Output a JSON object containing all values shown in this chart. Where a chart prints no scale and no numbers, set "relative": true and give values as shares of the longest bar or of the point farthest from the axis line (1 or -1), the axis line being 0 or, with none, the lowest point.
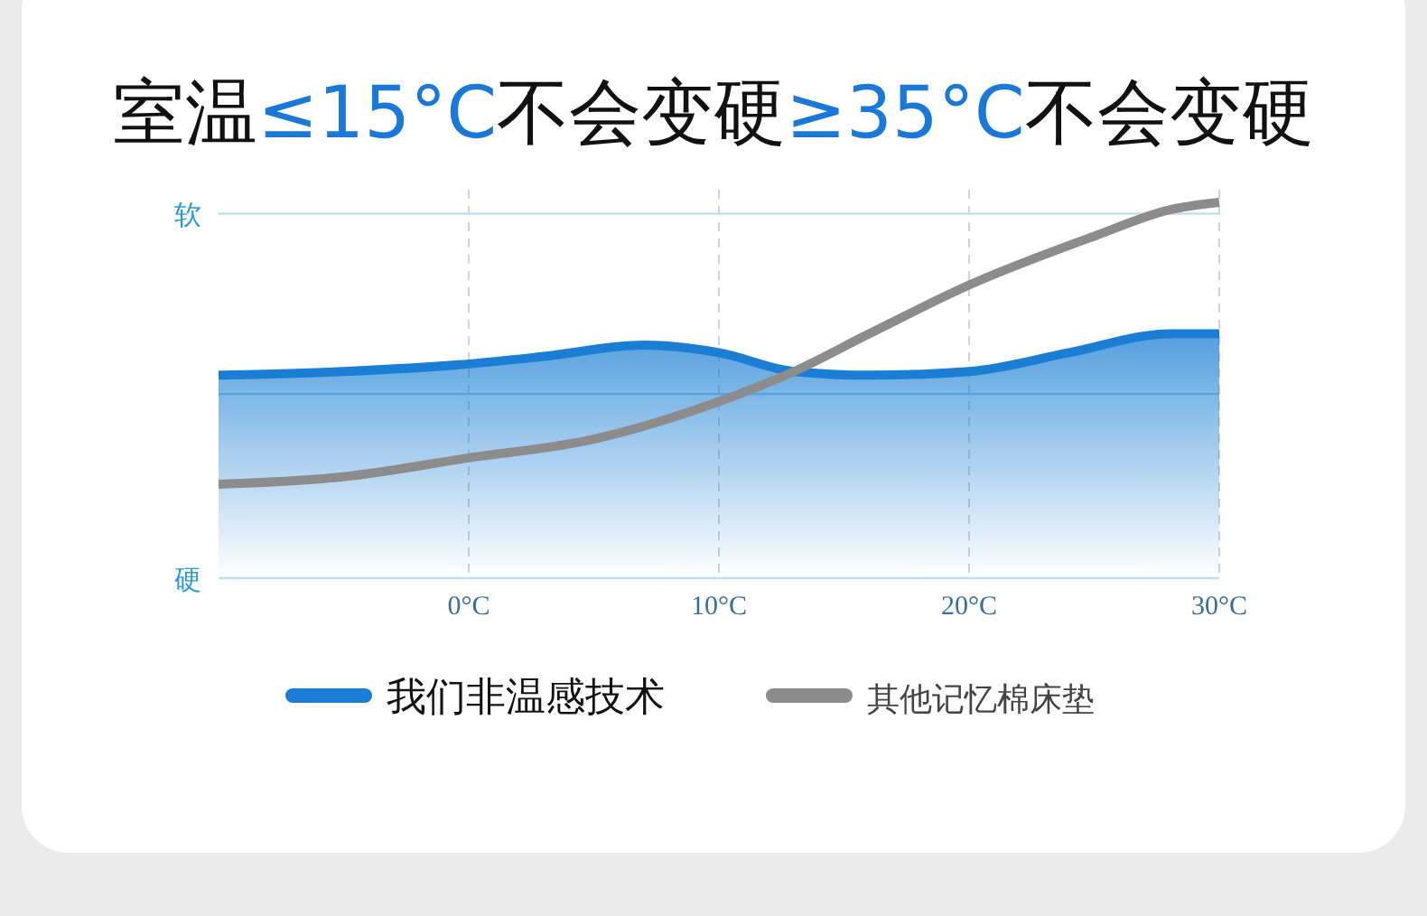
{
  "chart_data": {
    "type": "line",
    "title": "室温≤15°C不会变硬≥35°C不会变硬",
    "relative": true,
    "x": [
      -10,
      -5,
      0,
      3,
      7,
      10,
      13,
      16,
      20,
      24,
      28,
      30
    ],
    "series": [
      {
        "name": "我们非温感技术",
        "type": "area",
        "color": "#1a7fd4",
        "values": [
          0.54,
          0.55,
          0.57,
          0.59,
          0.62,
          0.6,
          0.55,
          0.54,
          0.55,
          0.6,
          0.65,
          0.65
        ]
      },
      {
        "name": "其他记忆棉床垫",
        "color": "#8c8c8c",
        "x": [
          -10,
          -5,
          0,
          5,
          10,
          13,
          16,
          20,
          25,
          28,
          30
        ],
        "values": [
          0.25,
          0.27,
          0.32,
          0.37,
          0.47,
          0.55,
          0.65,
          0.78,
          0.91,
          0.98,
          1
        ]
      }
    ],
    "xlim": [
      -10,
      30
    ],
    "xticks": [
      {
        "value": 0,
        "label": "0°C"
      },
      {
        "value": 10,
        "label": "10°C"
      },
      {
        "value": 20,
        "label": "20°C"
      },
      {
        "value": 30,
        "label": "30°C"
      }
    ],
    "ref_lines": [
      {
        "axis": "y",
        "value": 0.97,
        "label": "软",
        "color": "#bfe0f2"
      },
      {
        "axis": "y",
        "value": 0.49,
        "color": "#9fd0ee"
      }
    ],
    "annotations": [
      "硬"
    ],
    "grid": "x",
    "legend": "bottom",
    "marker": "none"
  }
}
